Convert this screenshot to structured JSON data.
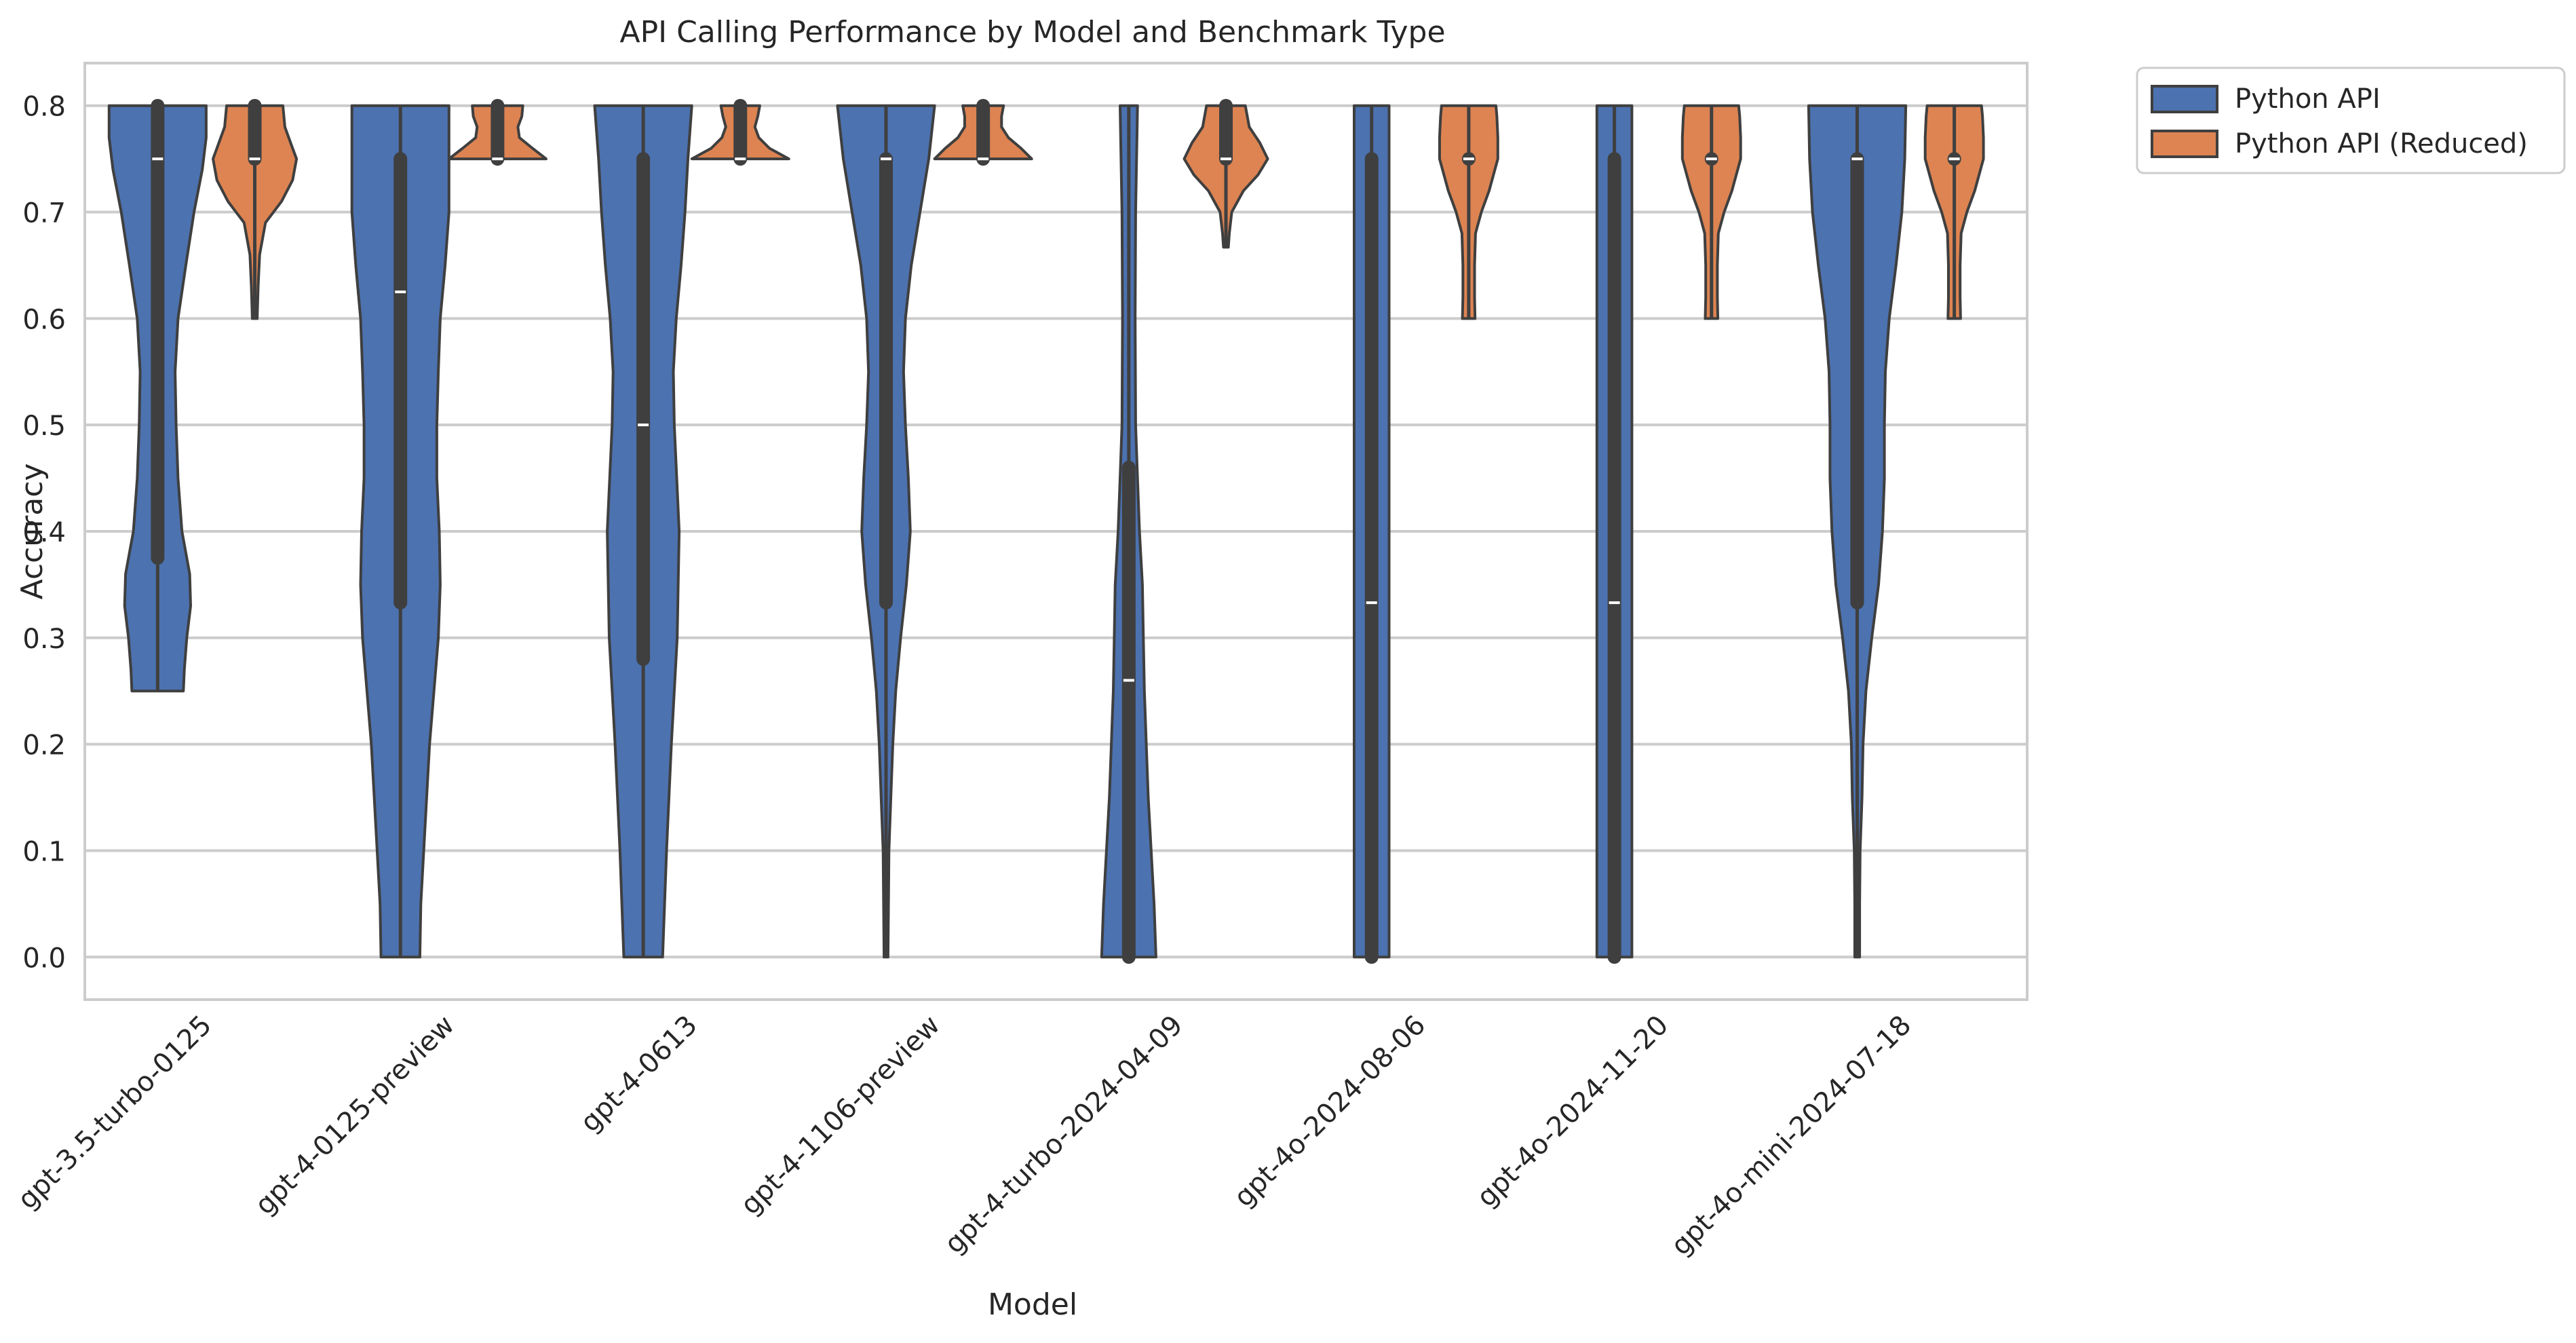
{
  "chart_data": {
    "type": "violin",
    "title": "API Calling Performance by Model and Benchmark Type",
    "xlabel": "Model",
    "ylabel": "Accuracy",
    "ylim": [
      -0.04,
      0.84
    ],
    "yticks": [
      0.0,
      0.1,
      0.2,
      0.3,
      0.4,
      0.5,
      0.6,
      0.7,
      0.8
    ],
    "ytick_labels": [
      "0.0",
      "0.1",
      "0.2",
      "0.3",
      "0.4",
      "0.5",
      "0.6",
      "0.7",
      "0.8"
    ],
    "grid": true,
    "legend_position": "outside top-right",
    "categories": [
      "gpt-3.5-turbo-0125",
      "gpt-4-0125-preview",
      "gpt-4-0613",
      "gpt-4-1106-preview",
      "gpt-4-turbo-2024-04-09",
      "gpt-4o-2024-08-06",
      "gpt-4o-2024-11-20",
      "gpt-4o-mini-2024-07-18"
    ],
    "series": [
      {
        "name": "Python API",
        "color": "#4c72b0",
        "stats": [
          {
            "min": 0.25,
            "q1": 0.375,
            "median": 0.75,
            "q3": 0.8,
            "max": 0.8,
            "profile": [
              [
                0.25,
                0.53
              ],
              [
                0.27,
                0.55
              ],
              [
                0.3,
                0.6
              ],
              [
                0.33,
                0.68
              ],
              [
                0.36,
                0.66
              ],
              [
                0.4,
                0.5
              ],
              [
                0.45,
                0.42
              ],
              [
                0.5,
                0.38
              ],
              [
                0.55,
                0.36
              ],
              [
                0.6,
                0.42
              ],
              [
                0.65,
                0.58
              ],
              [
                0.7,
                0.75
              ],
              [
                0.74,
                0.92
              ],
              [
                0.77,
                1.0
              ],
              [
                0.8,
                1.0
              ]
            ]
          },
          {
            "min": 0.0,
            "q1": 0.333,
            "median": 0.625,
            "q3": 0.75,
            "max": 0.8,
            "profile": [
              [
                0.0,
                0.4
              ],
              [
                0.05,
                0.42
              ],
              [
                0.1,
                0.48
              ],
              [
                0.2,
                0.6
              ],
              [
                0.3,
                0.78
              ],
              [
                0.35,
                0.82
              ],
              [
                0.4,
                0.8
              ],
              [
                0.45,
                0.75
              ],
              [
                0.5,
                0.75
              ],
              [
                0.55,
                0.78
              ],
              [
                0.6,
                0.82
              ],
              [
                0.65,
                0.92
              ],
              [
                0.7,
                1.0
              ],
              [
                0.8,
                1.0
              ]
            ]
          },
          {
            "min": 0.0,
            "q1": 0.28,
            "median": 0.5,
            "q3": 0.75,
            "max": 0.8,
            "profile": [
              [
                0.0,
                0.4
              ],
              [
                0.05,
                0.44
              ],
              [
                0.1,
                0.48
              ],
              [
                0.2,
                0.58
              ],
              [
                0.3,
                0.7
              ],
              [
                0.4,
                0.74
              ],
              [
                0.5,
                0.64
              ],
              [
                0.55,
                0.62
              ],
              [
                0.6,
                0.68
              ],
              [
                0.65,
                0.78
              ],
              [
                0.7,
                0.86
              ],
              [
                0.75,
                0.92
              ],
              [
                0.8,
                1.0
              ]
            ]
          },
          {
            "min": 0.0,
            "q1": 0.333,
            "median": 0.75,
            "q3": 0.75,
            "max": 0.8,
            "profile": [
              [
                0.0,
                0.04
              ],
              [
                0.05,
                0.05
              ],
              [
                0.1,
                0.06
              ],
              [
                0.15,
                0.1
              ],
              [
                0.2,
                0.14
              ],
              [
                0.25,
                0.2
              ],
              [
                0.3,
                0.3
              ],
              [
                0.35,
                0.42
              ],
              [
                0.4,
                0.5
              ],
              [
                0.45,
                0.46
              ],
              [
                0.5,
                0.4
              ],
              [
                0.55,
                0.36
              ],
              [
                0.6,
                0.4
              ],
              [
                0.65,
                0.52
              ],
              [
                0.7,
                0.7
              ],
              [
                0.75,
                0.88
              ],
              [
                0.8,
                1.0
              ]
            ]
          },
          {
            "min": 0.0,
            "q1": 0.0,
            "median": 0.26,
            "q3": 0.46,
            "max": 0.8,
            "profile": [
              [
                0.0,
                0.56
              ],
              [
                0.05,
                0.52
              ],
              [
                0.1,
                0.46
              ],
              [
                0.15,
                0.4
              ],
              [
                0.2,
                0.36
              ],
              [
                0.25,
                0.32
              ],
              [
                0.3,
                0.3
              ],
              [
                0.35,
                0.28
              ],
              [
                0.4,
                0.22
              ],
              [
                0.45,
                0.18
              ],
              [
                0.5,
                0.14
              ],
              [
                0.6,
                0.13
              ],
              [
                0.7,
                0.14
              ],
              [
                0.8,
                0.18
              ]
            ]
          },
          {
            "min": 0.0,
            "q1": 0.0,
            "median": 0.333,
            "q3": 0.75,
            "max": 0.8,
            "profile": [
              [
                0.0,
                0.36
              ],
              [
                0.1,
                0.36
              ],
              [
                0.2,
                0.36
              ],
              [
                0.3,
                0.36
              ],
              [
                0.4,
                0.36
              ],
              [
                0.5,
                0.36
              ],
              [
                0.6,
                0.36
              ],
              [
                0.7,
                0.36
              ],
              [
                0.8,
                0.36
              ]
            ]
          },
          {
            "min": 0.0,
            "q1": 0.0,
            "median": 0.333,
            "q3": 0.75,
            "max": 0.8,
            "profile": [
              [
                0.0,
                0.36
              ],
              [
                0.1,
                0.36
              ],
              [
                0.2,
                0.36
              ],
              [
                0.3,
                0.36
              ],
              [
                0.4,
                0.36
              ],
              [
                0.5,
                0.36
              ],
              [
                0.6,
                0.36
              ],
              [
                0.7,
                0.36
              ],
              [
                0.8,
                0.36
              ]
            ]
          },
          {
            "min": 0.0,
            "q1": 0.333,
            "median": 0.75,
            "q3": 0.75,
            "max": 0.8,
            "profile": [
              [
                0.0,
                0.05
              ],
              [
                0.05,
                0.05
              ],
              [
                0.1,
                0.06
              ],
              [
                0.15,
                0.1
              ],
              [
                0.2,
                0.12
              ],
              [
                0.25,
                0.18
              ],
              [
                0.3,
                0.3
              ],
              [
                0.35,
                0.44
              ],
              [
                0.4,
                0.52
              ],
              [
                0.45,
                0.56
              ],
              [
                0.5,
                0.56
              ],
              [
                0.55,
                0.58
              ],
              [
                0.6,
                0.66
              ],
              [
                0.65,
                0.8
              ],
              [
                0.7,
                0.92
              ],
              [
                0.75,
                0.98
              ],
              [
                0.8,
                1.0
              ]
            ]
          }
        ]
      },
      {
        "name": "Python API (Reduced)",
        "color": "#dd8452",
        "stats": [
          {
            "min": 0.6,
            "q1": 0.75,
            "median": 0.75,
            "q3": 0.8,
            "max": 0.8,
            "profile": [
              [
                0.6,
                0.05
              ],
              [
                0.63,
                0.07
              ],
              [
                0.66,
                0.1
              ],
              [
                0.69,
                0.22
              ],
              [
                0.71,
                0.55
              ],
              [
                0.73,
                0.78
              ],
              [
                0.75,
                0.86
              ],
              [
                0.76,
                0.78
              ],
              [
                0.78,
                0.62
              ],
              [
                0.8,
                0.58
              ]
            ]
          },
          {
            "min": 0.75,
            "q1": 0.75,
            "median": 0.75,
            "q3": 0.8,
            "max": 0.8,
            "profile": [
              [
                0.75,
                1.0
              ],
              [
                0.76,
                0.72
              ],
              [
                0.77,
                0.45
              ],
              [
                0.78,
                0.42
              ],
              [
                0.79,
                0.5
              ],
              [
                0.8,
                0.52
              ]
            ]
          },
          {
            "min": 0.75,
            "q1": 0.75,
            "median": 0.75,
            "q3": 0.8,
            "max": 0.8,
            "profile": [
              [
                0.75,
                1.0
              ],
              [
                0.76,
                0.6
              ],
              [
                0.77,
                0.38
              ],
              [
                0.78,
                0.3
              ],
              [
                0.79,
                0.36
              ],
              [
                0.8,
                0.4
              ]
            ]
          },
          {
            "min": 0.75,
            "q1": 0.75,
            "median": 0.75,
            "q3": 0.8,
            "max": 0.8,
            "profile": [
              [
                0.75,
                1.0
              ],
              [
                0.76,
                0.78
              ],
              [
                0.77,
                0.52
              ],
              [
                0.78,
                0.38
              ],
              [
                0.79,
                0.38
              ],
              [
                0.8,
                0.42
              ]
            ]
          },
          {
            "min": 0.667,
            "q1": 0.75,
            "median": 0.75,
            "q3": 0.8,
            "max": 0.8,
            "profile": [
              [
                0.667,
                0.05
              ],
              [
                0.68,
                0.07
              ],
              [
                0.7,
                0.12
              ],
              [
                0.72,
                0.36
              ],
              [
                0.735,
                0.66
              ],
              [
                0.75,
                0.86
              ],
              [
                0.765,
                0.7
              ],
              [
                0.78,
                0.48
              ],
              [
                0.8,
                0.4
              ]
            ]
          },
          {
            "min": 0.6,
            "q1": 0.75,
            "median": 0.75,
            "q3": 0.75,
            "max": 0.8,
            "profile": [
              [
                0.6,
                0.13
              ],
              [
                0.62,
                0.12
              ],
              [
                0.65,
                0.12
              ],
              [
                0.68,
                0.14
              ],
              [
                0.7,
                0.26
              ],
              [
                0.72,
                0.42
              ],
              [
                0.75,
                0.6
              ],
              [
                0.77,
                0.6
              ],
              [
                0.79,
                0.58
              ],
              [
                0.8,
                0.56
              ]
            ]
          },
          {
            "min": 0.6,
            "q1": 0.75,
            "median": 0.75,
            "q3": 0.75,
            "max": 0.8,
            "profile": [
              [
                0.6,
                0.13
              ],
              [
                0.62,
                0.12
              ],
              [
                0.65,
                0.12
              ],
              [
                0.68,
                0.14
              ],
              [
                0.7,
                0.26
              ],
              [
                0.72,
                0.42
              ],
              [
                0.75,
                0.6
              ],
              [
                0.77,
                0.6
              ],
              [
                0.79,
                0.58
              ],
              [
                0.8,
                0.56
              ]
            ]
          },
          {
            "min": 0.6,
            "q1": 0.75,
            "median": 0.75,
            "q3": 0.75,
            "max": 0.8,
            "profile": [
              [
                0.6,
                0.13
              ],
              [
                0.62,
                0.12
              ],
              [
                0.65,
                0.12
              ],
              [
                0.68,
                0.14
              ],
              [
                0.7,
                0.26
              ],
              [
                0.72,
                0.42
              ],
              [
                0.75,
                0.6
              ],
              [
                0.77,
                0.6
              ],
              [
                0.79,
                0.58
              ],
              [
                0.8,
                0.56
              ]
            ]
          }
        ]
      }
    ]
  }
}
